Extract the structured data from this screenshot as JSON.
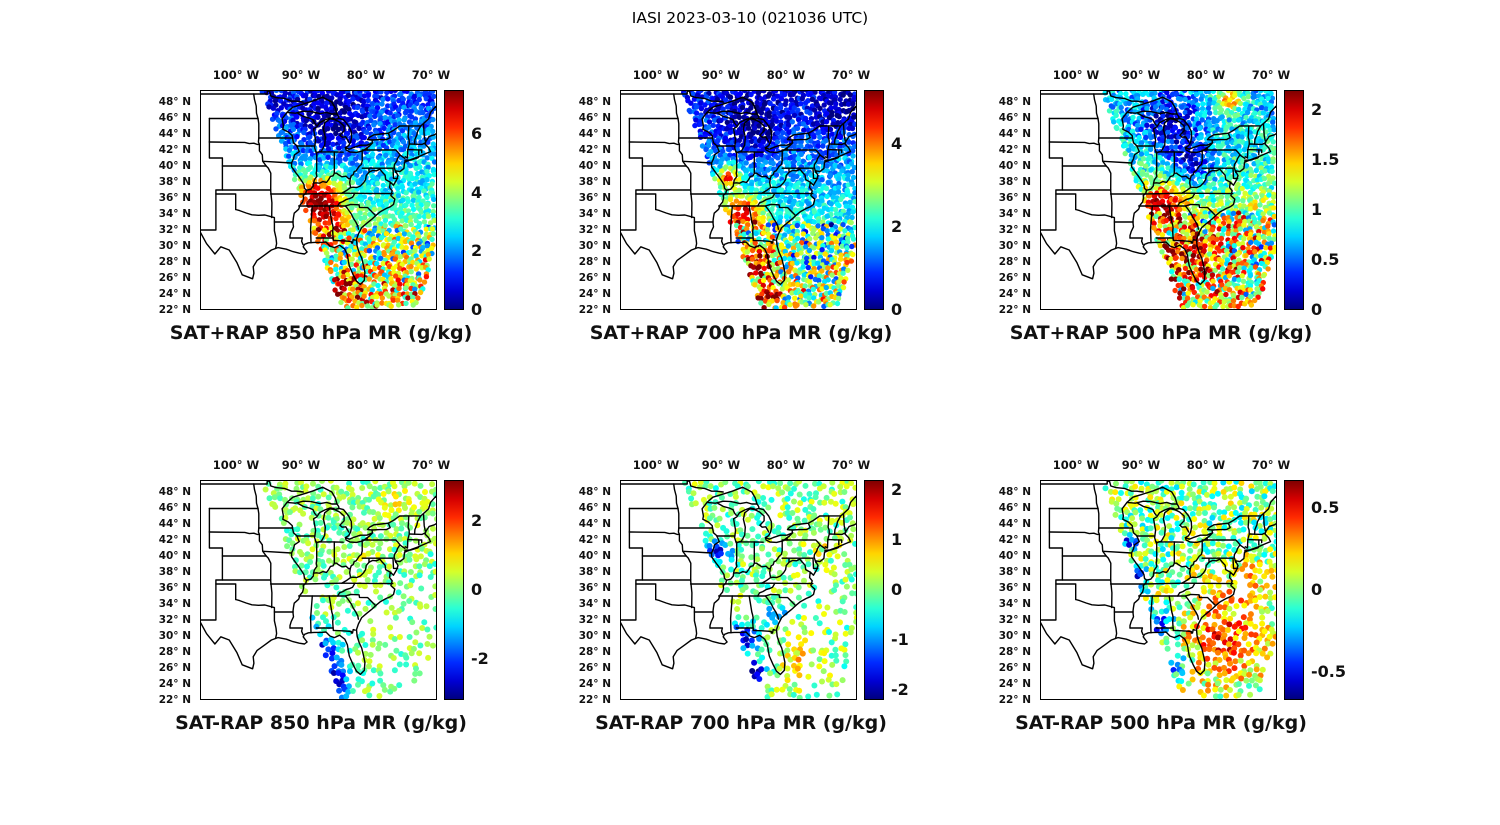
{
  "figure": {
    "title": "IASI 2023-03-10 (021036 UTC)"
  },
  "chart_data": {
    "type": "heatmap",
    "figure_title": "IASI 2023-03-10 (021036 UTC)",
    "colormap": "jet",
    "map": {
      "lon_range": [
        -105.5,
        -69.0
      ],
      "lat_range": [
        22.0,
        49.5
      ],
      "lon_ticks": [
        {
          "lon": -100,
          "label": "100° W"
        },
        {
          "lon": -90,
          "label": "90° W"
        },
        {
          "lon": -80,
          "label": "80° W"
        },
        {
          "lon": -70,
          "label": "70° W"
        }
      ],
      "lat_ticks": [
        {
          "lat": 48,
          "label": "48° N"
        },
        {
          "lat": 46,
          "label": "46° N"
        },
        {
          "lat": 44,
          "label": "44° N"
        },
        {
          "lat": 42,
          "label": "42° N"
        },
        {
          "lat": 40,
          "label": "40° N"
        },
        {
          "lat": 38,
          "label": "38° N"
        },
        {
          "lat": 36,
          "label": "36° N"
        },
        {
          "lat": 34,
          "label": "34° N"
        },
        {
          "lat": 32,
          "label": "32° N"
        },
        {
          "lat": 30,
          "label": "30° N"
        },
        {
          "lat": 28,
          "label": "28° N"
        },
        {
          "lat": 26,
          "label": "26° N"
        },
        {
          "lat": 24,
          "label": "24° N"
        },
        {
          "lat": 22,
          "label": "22° N"
        }
      ]
    },
    "swath_polygon": [
      [
        0.26,
        0.0
      ],
      [
        1.0,
        0.0
      ],
      [
        1.0,
        0.7
      ],
      [
        0.92,
        0.98
      ],
      [
        0.6,
        1.0
      ]
    ],
    "panels": [
      {
        "id": "sat-plus-rap-850",
        "title": "SAT+RAP 850 hPa MR (g/kg)",
        "row": 0,
        "col": 0,
        "mode": "total",
        "seed": 101,
        "colorbar": {
          "min": 0,
          "max": 7.5,
          "ticks": [
            {
              "v": 0,
              "label": "0"
            },
            {
              "v": 2,
              "label": "2"
            },
            {
              "v": 4,
              "label": "4"
            },
            {
              "v": 6,
              "label": "6"
            }
          ]
        },
        "field": {
          "base": 0.16,
          "grad": 0.5,
          "noise": 0.1,
          "south_start": 0.62,
          "south_noise": 0.3,
          "blobs": [
            {
              "x": 0.56,
              "y": 0.16,
              "r": 0.16,
              "amp": -0.2
            },
            {
              "x": 0.5,
              "y": 0.5,
              "r": 0.1,
              "amp": 0.62
            },
            {
              "x": 0.56,
              "y": 0.63,
              "r": 0.08,
              "amp": 0.3
            },
            {
              "x": 0.62,
              "y": 0.9,
              "r": 0.06,
              "amp": 0.4
            },
            {
              "x": 0.3,
              "y": 0.08,
              "r": 0.07,
              "amp": -0.1
            }
          ]
        }
      },
      {
        "id": "sat-plus-rap-700",
        "title": "SAT+RAP 700 hPa MR (g/kg)",
        "row": 0,
        "col": 1,
        "mode": "total",
        "seed": 202,
        "colorbar": {
          "min": 0,
          "max": 5.3,
          "ticks": [
            {
              "v": 0,
              "label": "0"
            },
            {
              "v": 2,
              "label": "2"
            },
            {
              "v": 4,
              "label": "4"
            }
          ]
        },
        "field": {
          "base": 0.14,
          "grad": 0.42,
          "noise": 0.1,
          "south_start": 0.6,
          "south_noise": 0.3,
          "blobs": [
            {
              "x": 0.56,
              "y": 0.16,
              "r": 0.16,
              "amp": -0.18
            },
            {
              "x": 0.46,
              "y": 0.4,
              "r": 0.05,
              "amp": 0.55
            },
            {
              "x": 0.52,
              "y": 0.56,
              "r": 0.08,
              "amp": 0.55
            },
            {
              "x": 0.58,
              "y": 0.78,
              "r": 0.08,
              "amp": 0.5
            },
            {
              "x": 0.63,
              "y": 0.93,
              "r": 0.05,
              "amp": 0.45
            },
            {
              "x": 0.92,
              "y": 0.1,
              "r": 0.12,
              "amp": -0.15
            }
          ]
        }
      },
      {
        "id": "sat-plus-rap-500",
        "title": "SAT+RAP 500 hPa MR (g/kg)",
        "row": 0,
        "col": 2,
        "mode": "total",
        "seed": 303,
        "colorbar": {
          "min": 0,
          "max": 2.2,
          "ticks": [
            {
              "v": 0,
              "label": "0"
            },
            {
              "v": 0.5,
              "label": "0.5"
            },
            {
              "v": 1,
              "label": "1"
            },
            {
              "v": 1.5,
              "label": "1.5"
            },
            {
              "v": 2,
              "label": "2"
            }
          ]
        },
        "field": {
          "base": 0.3,
          "grad": 0.32,
          "noise": 0.13,
          "south_start": 0.55,
          "south_noise": 0.3,
          "blobs": [
            {
              "x": 0.55,
              "y": 0.15,
              "r": 0.12,
              "amp": -0.28
            },
            {
              "x": 0.64,
              "y": 0.33,
              "r": 0.1,
              "amp": -0.28
            },
            {
              "x": 0.52,
              "y": 0.52,
              "r": 0.09,
              "amp": 0.5
            },
            {
              "x": 0.62,
              "y": 0.75,
              "rx": 0.18,
              "ry": 0.14,
              "amp": 0.32
            },
            {
              "x": 0.8,
              "y": 0.04,
              "r": 0.06,
              "amp": 0.4
            },
            {
              "x": 0.9,
              "y": 0.55,
              "r": 0.1,
              "amp": 0.12
            }
          ]
        }
      },
      {
        "id": "sat-minus-rap-850",
        "title": "SAT-RAP 850 hPa MR (g/kg)",
        "row": 1,
        "col": 0,
        "mode": "diff",
        "seed": 404,
        "colorbar": {
          "min": -3.2,
          "max": 3.2,
          "ticks": [
            {
              "v": 2,
              "label": "2"
            },
            {
              "v": 0,
              "label": "0"
            },
            {
              "v": -2,
              "label": "-2"
            }
          ]
        },
        "field": {
          "base": 0.5,
          "grad": 0,
          "noise": 0.1,
          "keep_base": 0.3,
          "keep_gain": 1.8,
          "keep_north": 0.3,
          "blobs": [
            {
              "x": 0.5,
              "y": 0.8,
              "r": 0.09,
              "amp": -0.48
            },
            {
              "x": 0.56,
              "y": 0.93,
              "r": 0.07,
              "amp": -0.48
            },
            {
              "x": 0.45,
              "y": 0.66,
              "r": 0.05,
              "amp": -0.3
            },
            {
              "x": 0.85,
              "y": 0.12,
              "r": 0.1,
              "amp": 0.1
            },
            {
              "x": 0.7,
              "y": 0.35,
              "r": 0.08,
              "amp": 0.06
            }
          ]
        }
      },
      {
        "id": "sat-minus-rap-700",
        "title": "SAT-RAP 700 hPa MR (g/kg)",
        "row": 1,
        "col": 1,
        "mode": "diff",
        "seed": 505,
        "colorbar": {
          "min": -2.2,
          "max": 2.2,
          "ticks": [
            {
              "v": 2,
              "label": "2"
            },
            {
              "v": 1,
              "label": "1"
            },
            {
              "v": 0,
              "label": "0"
            },
            {
              "v": -1,
              "label": "-1"
            },
            {
              "v": -2,
              "label": "-2"
            }
          ]
        },
        "field": {
          "base": 0.5,
          "grad": 0,
          "noise": 0.12,
          "keep_base": 0.28,
          "keep_gain": 1.8,
          "keep_north": 0.25,
          "blobs": [
            {
              "x": 0.42,
              "y": 0.33,
              "r": 0.05,
              "amp": -0.42
            },
            {
              "x": 0.52,
              "y": 0.72,
              "r": 0.06,
              "amp": -0.45
            },
            {
              "x": 0.55,
              "y": 0.88,
              "r": 0.07,
              "amp": -0.5
            },
            {
              "x": 0.66,
              "y": 0.6,
              "r": 0.05,
              "amp": -0.22
            },
            {
              "x": 0.75,
              "y": 0.82,
              "r": 0.1,
              "amp": 0.16
            },
            {
              "x": 0.88,
              "y": 0.3,
              "r": 0.08,
              "amp": 0.08
            }
          ]
        }
      },
      {
        "id": "sat-minus-rap-500",
        "title": "SAT-RAP 500 hPa MR (g/kg)",
        "row": 1,
        "col": 2,
        "mode": "diff",
        "seed": 606,
        "colorbar": {
          "min": -0.67,
          "max": 0.67,
          "ticks": [
            {
              "v": 0.5,
              "label": "0.5"
            },
            {
              "v": 0,
              "label": "0"
            },
            {
              "v": -0.5,
              "label": "-0.5"
            }
          ]
        },
        "field": {
          "base": 0.5,
          "grad": 0.02,
          "noise": 0.17,
          "keep_base": 0.5,
          "keep_gain": 1.2,
          "keep_north": 0.15,
          "blobs": [
            {
              "x": 0.4,
              "y": 0.45,
              "r": 0.05,
              "amp": -0.42
            },
            {
              "x": 0.5,
              "y": 0.66,
              "r": 0.07,
              "amp": -0.42
            },
            {
              "x": 0.56,
              "y": 0.83,
              "r": 0.06,
              "amp": -0.38
            },
            {
              "x": 0.37,
              "y": 0.28,
              "r": 0.04,
              "amp": -0.35
            },
            {
              "x": 0.78,
              "y": 0.72,
              "rx": 0.18,
              "ry": 0.2,
              "amp": 0.3
            },
            {
              "x": 0.88,
              "y": 0.45,
              "r": 0.08,
              "amp": 0.18
            }
          ]
        }
      }
    ]
  }
}
